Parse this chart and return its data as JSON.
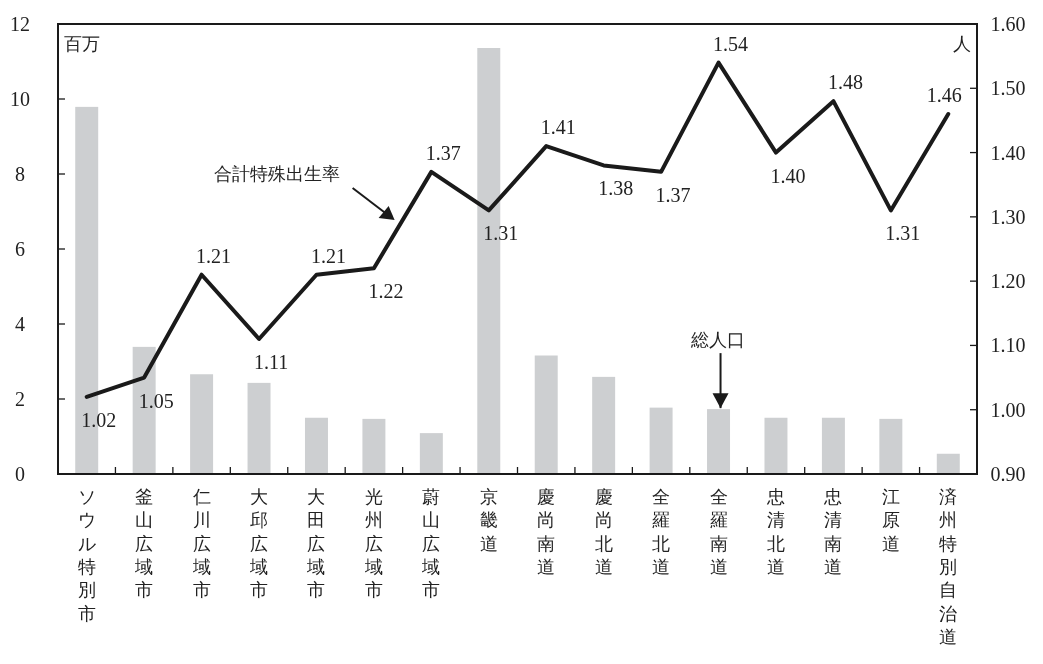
{
  "chart_data": {
    "type": "bar",
    "ylabel": "百万",
    "y2label": "人",
    "categories": [
      "ソウル特別市",
      "釜山広域市",
      "仁川広域市",
      "大邱広域市",
      "大田広域市",
      "光州広域市",
      "蔚山広域市",
      "京畿道",
      "慶尚南道",
      "慶尚北道",
      "全羅北道",
      "全羅南道",
      "忠清北道",
      "忠清南道",
      "江原道",
      "済州特別自治道"
    ],
    "series": [
      {
        "color": "#cdcfd1",
        "values": [
          9.79,
          3.39,
          2.66,
          2.43,
          1.5,
          1.47,
          1.09,
          11.36,
          3.16,
          2.59,
          1.77,
          1.73,
          1.5,
          1.5,
          1.47,
          0.54
        ]
      },
      {
        "type": "line",
        "axis": "y2",
        "color": "#1a1a1a",
        "values": [
          1.02,
          1.05,
          1.21,
          1.11,
          1.21,
          1.22,
          1.37,
          1.31,
          1.41,
          1.38,
          1.37,
          1.54,
          1.4,
          1.48,
          1.31,
          1.46
        ],
        "value_labels": [
          "1.02",
          "1.05",
          "1.21",
          "1.11",
          "1.21",
          "1.22",
          "1.37",
          "1.31",
          "1.41",
          "1.38",
          "1.37",
          "1.54",
          "1.40",
          "1.48",
          "1.31",
          "1.46"
        ]
      }
    ],
    "annotations": [
      "合計特殊出生率",
      {
        "text": "総人口",
        "x": "全羅南道",
        "y": 1.73
      }
    ],
    "ylim": [
      0,
      12
    ],
    "yticks": [
      0,
      2,
      4,
      6,
      8,
      10,
      12
    ],
    "y2lim": [
      0.9,
      1.6
    ],
    "y2ticks": [
      {
        "value": 0.9,
        "label": "0.90"
      },
      {
        "value": 1.0,
        "label": "1.00"
      },
      {
        "value": 1.1,
        "label": "1.10"
      },
      {
        "value": 1.2,
        "label": "1.20"
      },
      {
        "value": 1.3,
        "label": "1.30"
      },
      {
        "value": 1.4,
        "label": "1.40"
      },
      {
        "value": 1.5,
        "label": "1.50"
      },
      {
        "value": 1.6,
        "label": "1.60"
      }
    ],
    "grid": false
  }
}
